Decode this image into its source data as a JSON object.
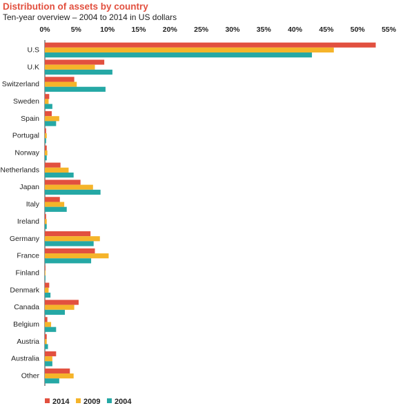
{
  "title": "Distribution of assets by country",
  "subtitle": "Ten-year overview – 2004 to 2014 in US dollars",
  "chart_data": {
    "type": "bar",
    "orientation": "horizontal",
    "title": "Distribution of assets by country",
    "subtitle": "Ten-year overview – 2004 to 2014 in US dollars",
    "categories": [
      "U.S",
      "U.K",
      "Switzerland",
      "Sweden",
      "Spain",
      "Portugal",
      "Norway",
      "Netherlands",
      "Japan",
      "Italy",
      "Ireland",
      "Germany",
      "France",
      "Finland",
      "Denmark",
      "Canada",
      "Belgium",
      "Austria",
      "Australia",
      "Other"
    ],
    "x_ticks": [
      "0%",
      "5%",
      "10%",
      "15%",
      "20%",
      "25%",
      "30%",
      "35%",
      "40%",
      "45%",
      "50%",
      "55%"
    ],
    "xlim": [
      0,
      55
    ],
    "grid": false,
    "legend_position": "bottom-left",
    "series": [
      {
        "name": "2014",
        "color": "#e2503f",
        "values": [
          52.9,
          9.5,
          4.7,
          0.7,
          1.1,
          0.2,
          0.3,
          2.5,
          5.7,
          2.4,
          0.2,
          7.3,
          8.0,
          0.1,
          0.7,
          5.4,
          0.4,
          0.3,
          1.8,
          4.0
        ]
      },
      {
        "name": "2009",
        "color": "#f5b42a",
        "values": [
          46.2,
          8.0,
          5.1,
          0.6,
          2.3,
          0.3,
          0.4,
          3.8,
          7.7,
          3.1,
          0.3,
          8.8,
          10.2,
          0.1,
          0.6,
          4.7,
          1.0,
          0.3,
          1.2,
          4.6
        ]
      },
      {
        "name": "2004",
        "color": "#25a8a5",
        "values": [
          42.7,
          10.8,
          9.7,
          1.2,
          1.8,
          0.2,
          0.3,
          4.6,
          8.9,
          3.5,
          0.3,
          7.8,
          7.4,
          0.1,
          0.9,
          3.2,
          1.8,
          0.5,
          1.2,
          2.3
        ]
      }
    ]
  }
}
